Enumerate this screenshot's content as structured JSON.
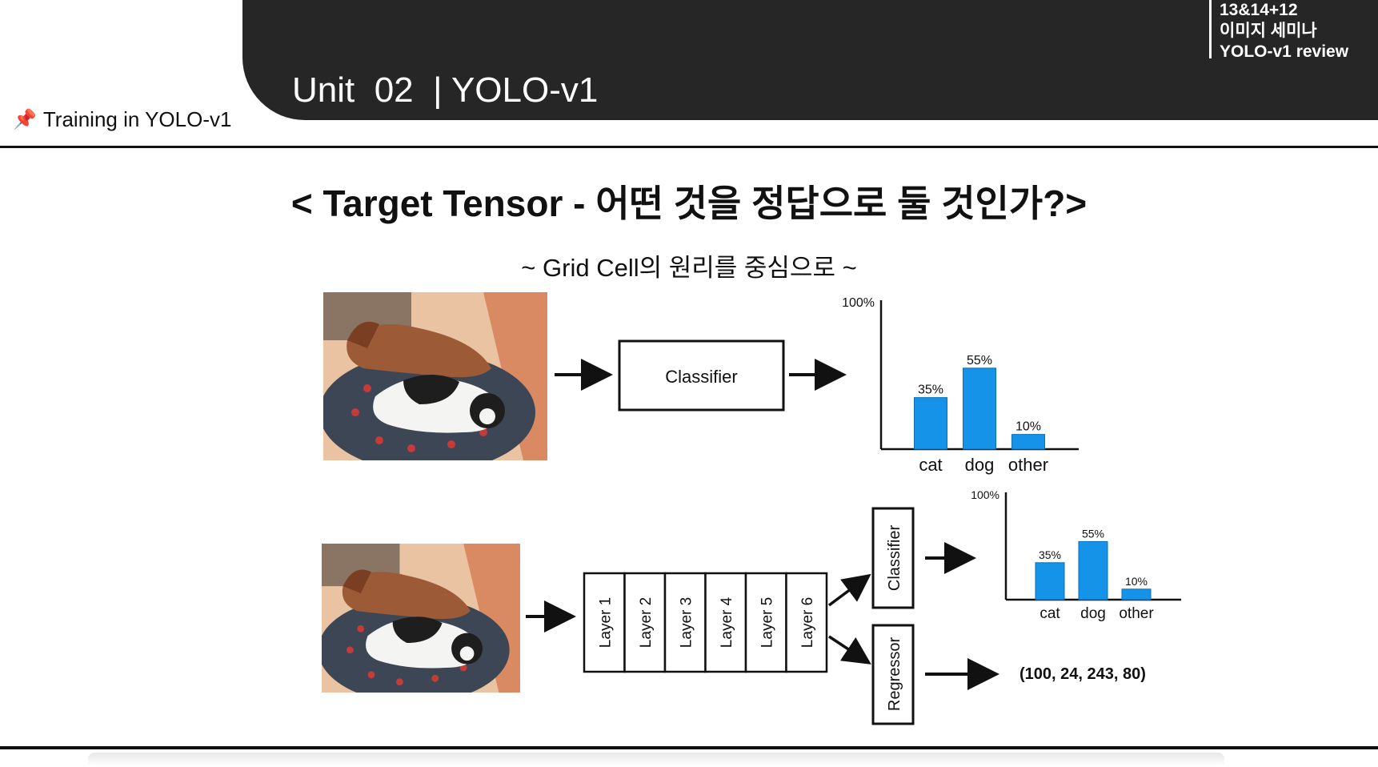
{
  "header": {
    "unit_title": "Unit  02  | YOLO-v1",
    "info_lines": [
      "13&14+12",
      "이미지 세미나",
      "YOLO-v1 review"
    ]
  },
  "section": {
    "label": "Training in YOLO-v1",
    "icon": "pushpin-icon"
  },
  "slide": {
    "title": "< Target Tensor - 어떤 것을 정답으로 둘 것인가?>",
    "subtitle": "~ Grid Cell의 원리를 중심으로 ~"
  },
  "diagram": {
    "top": {
      "classifier_label": "Classifier"
    },
    "bottom": {
      "layers": [
        "Layer 1",
        "Layer 2",
        "Layer 3",
        "Layer 4",
        "Layer 5",
        "Layer 6"
      ],
      "classifier_label": "Classifier",
      "regressor_label": "Regressor",
      "regressor_output": "(100, 24, 243, 80)"
    }
  },
  "chart_data": [
    {
      "type": "bar",
      "categories": [
        "cat",
        "dog",
        "other"
      ],
      "values": [
        35,
        55,
        10
      ],
      "value_labels": [
        "35%",
        "55%",
        "10%"
      ],
      "ylim": [
        0,
        100
      ],
      "y_top_label": "100%",
      "color": "#1493e8"
    },
    {
      "type": "bar",
      "categories": [
        "cat",
        "dog",
        "other"
      ],
      "values": [
        35,
        55,
        10
      ],
      "value_labels": [
        "35%",
        "55%",
        "10%"
      ],
      "ylim": [
        0,
        100
      ],
      "y_top_label": "100%",
      "color": "#1493e8"
    }
  ]
}
